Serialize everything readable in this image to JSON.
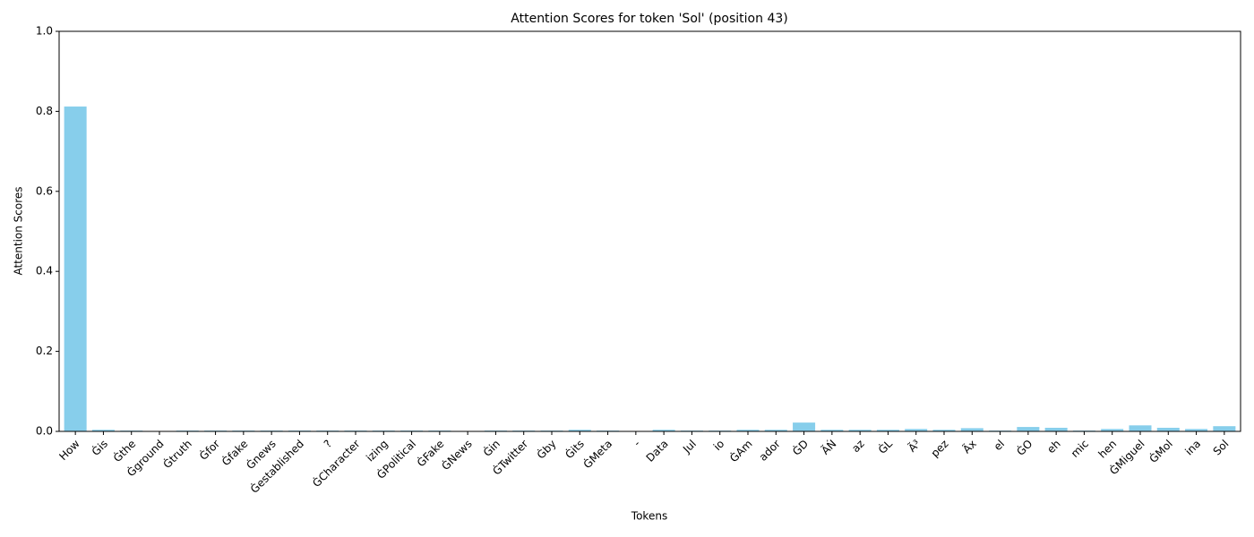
{
  "chart_data": {
    "type": "bar",
    "title": "Attention Scores for token 'Sol' (position 43)",
    "xlabel": "Tokens",
    "ylabel": "Attention Scores",
    "color": "#87ceeb",
    "categories": [
      "How",
      "Ġis",
      "Ġthe",
      "Ġground",
      "Ġtruth",
      "Ġfor",
      "Ġfake",
      "Ġnews",
      "Ġestablished",
      "?",
      "ĠCharacter",
      "izing",
      "ĠPolitical",
      "ĠFake",
      "ĠNews",
      "Ġin",
      "ĠTwitter",
      "Ġby",
      "Ġits",
      "ĠMeta",
      "-",
      "Data",
      "Jul",
      "io",
      "ĠAm",
      "ador",
      "ĠD",
      "ÃŃ",
      "az",
      "ĠL",
      "Ã³",
      "pez",
      "Ãx",
      "el",
      "ĠO",
      "eh",
      "mic",
      "hen",
      "ĠMiguel",
      "ĠMol",
      "ina",
      "Sol"
    ],
    "values": [
      0.812,
      0.004,
      0.002,
      0.001,
      0.002,
      0.002,
      0.002,
      0.002,
      0.002,
      0.002,
      0.002,
      0.002,
      0.002,
      0.002,
      0.001,
      0.002,
      0.002,
      0.002,
      0.004,
      0.002,
      0.001,
      0.004,
      0.002,
      0.002,
      0.004,
      0.004,
      0.022,
      0.004,
      0.004,
      0.004,
      0.006,
      0.004,
      0.008,
      0.002,
      0.011,
      0.009,
      0.002,
      0.006,
      0.015,
      0.009,
      0.006,
      0.013
    ],
    "ylim": [
      0,
      1
    ],
    "yticks": [
      {
        "value": 0,
        "label": "0.0"
      },
      {
        "value": 0.2,
        "label": "0.2"
      },
      {
        "value": 0.4,
        "label": "0.4"
      },
      {
        "value": 0.6,
        "label": "0.6"
      },
      {
        "value": 0.8,
        "label": "0.8"
      },
      {
        "value": 1,
        "label": "1.0"
      }
    ]
  }
}
